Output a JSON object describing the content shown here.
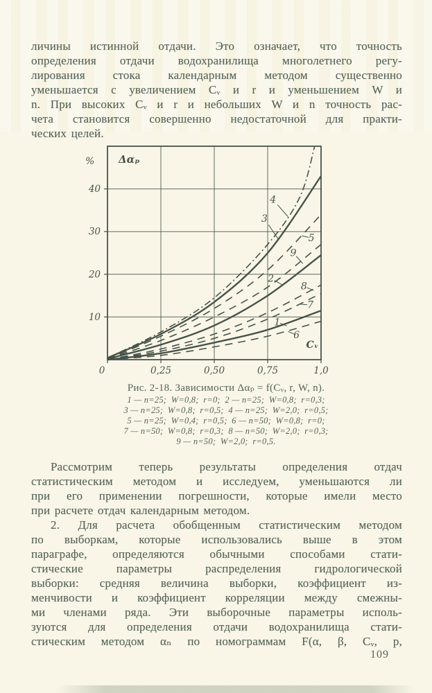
{
  "colors": {
    "paper": "#f9f6e7",
    "ink": "#55635a",
    "chart_ink": "#47524a"
  },
  "page": {
    "number": "109"
  },
  "paragraph_top": {
    "lines": [
      "личины истинной отдачи. Это означает, что точность",
      "определения отдачи водохранилища многолетнего регу-",
      "лирования стока календарным методом существенно",
      "уменьшается с увеличением Cᵥ и r и уменьшением W и",
      "n. При высоких Cᵥ и r и небольших W и n точность рас-",
      "чета становится совершенно недостаточной для практи-",
      "ческих целей."
    ]
  },
  "figure": {
    "caption_title": "Рис. 2-18. Зависимости Δαₚ = f(Cᵥ, r, W, n).",
    "legend_lines": [
      "1 — n=25;  W=0,8;  r=0;  2 — n=25;  W=0,8;  r=0,3;",
      "3 — n=25;  W=0,8;  r=0,5;  4 — n=25;  W=2,0;  r=0,5;",
      "5 — n=25;  W=0,4;  r=0,5;  6 — n=50;  W=0,8;  r=0;",
      "7 — n=50;  W=0,8;  r=0,3;  8 — n=50;  W=2,0;  r=0,3;",
      "9 — n=50;  W=2,0;  r=0,5."
    ]
  },
  "paragraph_middle": {
    "lines": [
      "Рассмотрим теперь результаты определения отдач",
      "статистическим методом и исследуем, уменьшаются ли",
      "при его применении погрешности, которые имели место",
      "при расчете отдач календарным методом."
    ]
  },
  "paragraph_bottom": {
    "lines": [
      "2. Для расчета обобщенным статистическим методом",
      "по выборкам, которые использовались выше в этом",
      "параграфе, определяются обычными способами стати-",
      "стические параметры распределения гидрологической",
      "выборки: средняя величина выборки, коэффициент из-",
      "менчивости и коэффициент корреляции между смежны-",
      "ми членами ряда. Эти выборочные параметры исполь-",
      "зуются для определения отдачи водохранилища стати-",
      "стическим методом αₙ по номограммам F(α, β, Cᵥ, p,"
    ]
  },
  "chart_data": {
    "type": "line",
    "title": "Зависимости Δαₚ = f(Cᵥ, r, W, n)",
    "xlabel": "Cᵥ",
    "ylabel": "Δαₚ",
    "y_unit": "%",
    "xlim": [
      0,
      1.0
    ],
    "ylim": [
      0,
      50
    ],
    "grid": true,
    "legend_position": "caption-below",
    "x_ticks": [
      {
        "v": 0,
        "label": "0"
      },
      {
        "v": 0.25,
        "label": "0,25"
      },
      {
        "v": 0.5,
        "label": "0,50"
      },
      {
        "v": 0.75,
        "label": "0,75"
      },
      {
        "v": 1.0,
        "label": "1,0"
      }
    ],
    "y_ticks": [
      {
        "v": 10,
        "label": "10"
      },
      {
        "v": 20,
        "label": "20"
      },
      {
        "v": 30,
        "label": "30"
      },
      {
        "v": 40,
        "label": "40"
      }
    ],
    "series": [
      {
        "name": "4",
        "meta": "n=25; W=2,0; r=0,5",
        "style": "dashdot",
        "points": [
          [
            0,
            0.4
          ],
          [
            0.25,
            6.5
          ],
          [
            0.5,
            14.5
          ],
          [
            0.75,
            27
          ],
          [
            0.9,
            38
          ],
          [
            0.97,
            50
          ]
        ]
      },
      {
        "name": "3",
        "meta": "n=25; W=0,8; r=0,5",
        "style": "solid",
        "points": [
          [
            0,
            0.4
          ],
          [
            0.25,
            6
          ],
          [
            0.5,
            13.5
          ],
          [
            0.75,
            25
          ],
          [
            1,
            43
          ]
        ]
      },
      {
        "name": "5",
        "meta": "n=25; W=0,4; r=0,5",
        "style": "dashed",
        "points": [
          [
            0,
            0.2
          ],
          [
            0.25,
            5.5
          ],
          [
            0.5,
            12
          ],
          [
            0.75,
            21
          ],
          [
            1,
            34
          ]
        ]
      },
      {
        "name": "9",
        "meta": "n=50; W=2,0; r=0,5",
        "style": "dashed",
        "points": [
          [
            0,
            0.2
          ],
          [
            0.25,
            4.5
          ],
          [
            0.5,
            10
          ],
          [
            0.75,
            17
          ],
          [
            1,
            27
          ]
        ]
      },
      {
        "name": "2",
        "meta": "n=25; W=0,8; r=0,3",
        "style": "solid",
        "points": [
          [
            0,
            0.2
          ],
          [
            0.25,
            3.5
          ],
          [
            0.5,
            8
          ],
          [
            0.75,
            15
          ],
          [
            1,
            24.5
          ]
        ]
      },
      {
        "name": "8",
        "meta": "n=50; W=2,0; r=0,3",
        "style": "dashed",
        "points": [
          [
            0,
            0
          ],
          [
            0.25,
            2.5
          ],
          [
            0.5,
            6
          ],
          [
            0.75,
            11
          ],
          [
            1,
            17.5
          ]
        ]
      },
      {
        "name": "7",
        "meta": "n=50; W=0,8; r=0,3",
        "style": "dashed",
        "points": [
          [
            0,
            0
          ],
          [
            0.25,
            2
          ],
          [
            0.5,
            5
          ],
          [
            0.75,
            9.5
          ],
          [
            1,
            15.5
          ]
        ]
      },
      {
        "name": "1",
        "meta": "n=25; W=0,8; r=0",
        "style": "solid",
        "points": [
          [
            0,
            0
          ],
          [
            0.25,
            1.5
          ],
          [
            0.5,
            4
          ],
          [
            0.75,
            7
          ],
          [
            1,
            11.5
          ]
        ]
      },
      {
        "name": "6",
        "meta": "n=50; W=0,8; r=0",
        "style": "dashed",
        "points": [
          [
            0,
            0
          ],
          [
            0.25,
            1
          ],
          [
            0.5,
            3
          ],
          [
            0.75,
            5.5
          ],
          [
            1,
            9
          ]
        ]
      }
    ],
    "curve_labels": [
      {
        "text": "4",
        "x": 0.775,
        "y": 37.5,
        "tx": 0.845,
        "ty": 33.5
      },
      {
        "text": "3",
        "x": 0.735,
        "y": 33.0,
        "tx": 0.8,
        "ty": 28.2
      },
      {
        "text": "5",
        "x": 0.955,
        "y": 28.5,
        "tx": 0.91,
        "ty": 29.0
      },
      {
        "text": "9",
        "x": 0.87,
        "y": 25.0,
        "tx": 0.915,
        "ty": 22.5
      },
      {
        "text": "2",
        "x": 0.765,
        "y": 19.0,
        "tx": 0.82,
        "ty": 17.5
      },
      {
        "text": "8",
        "x": 0.92,
        "y": 17.2,
        "tx": 0.965,
        "ty": 16.2
      },
      {
        "text": "7",
        "x": 0.95,
        "y": 12.8,
        "tx": 0.9,
        "ty": 13.0
      },
      {
        "text": "1",
        "x": 0.795,
        "y": 8.8,
        "tx": 0.84,
        "ty": 7.9
      },
      {
        "text": "6",
        "x": 0.885,
        "y": 5.8,
        "tx": 0.845,
        "ty": 6.6
      }
    ],
    "xlabel_pos": {
      "x": 0.93,
      "y": 2.8
    }
  }
}
